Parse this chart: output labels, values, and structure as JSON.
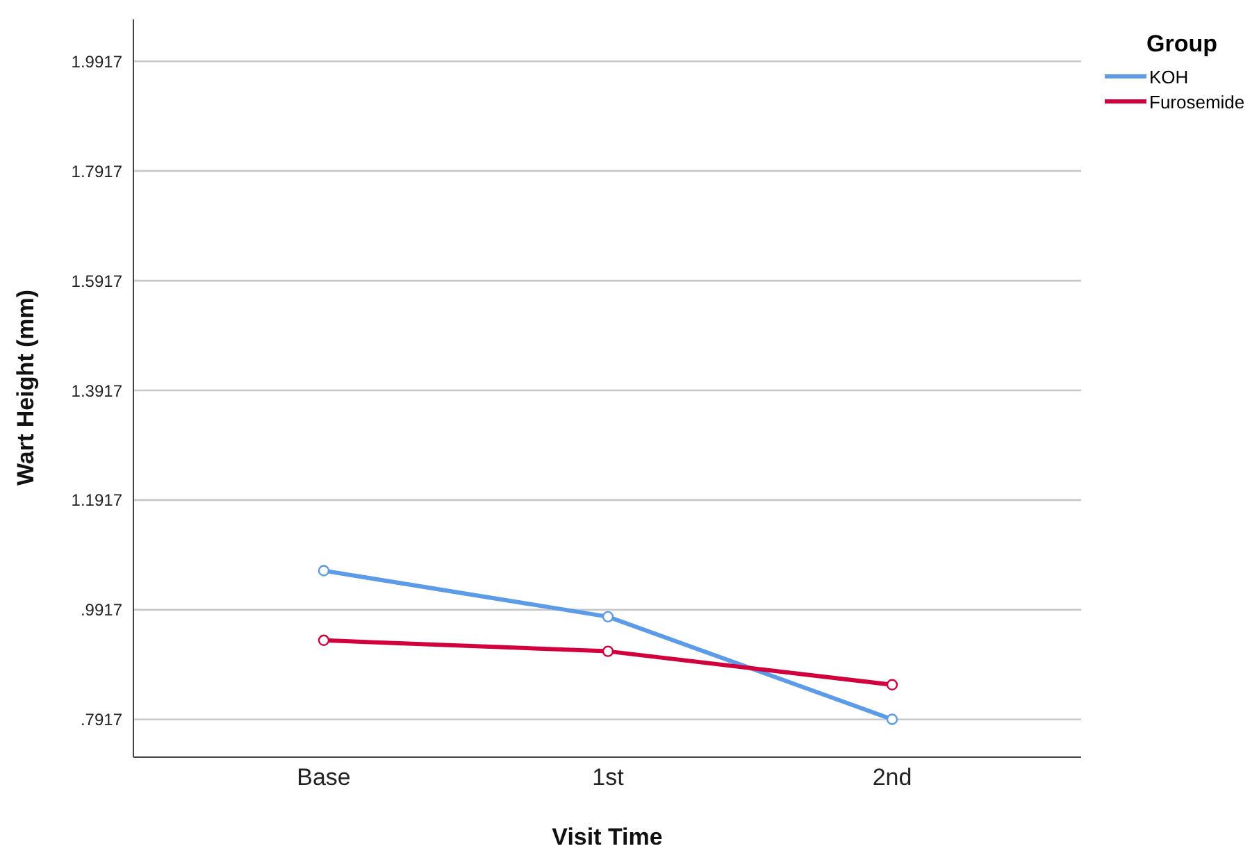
{
  "chart_data": {
    "type": "line",
    "xlabel": "Visit Time",
    "ylabel": "Wart Height (mm)",
    "legend_title": "Group",
    "categories": [
      "Base",
      "1st",
      "2nd"
    ],
    "series": [
      {
        "name": "KOH",
        "color": "#5b9be8",
        "values": [
          1.063,
          0.979,
          0.792
        ]
      },
      {
        "name": "Furosemide",
        "color": "#d2003c",
        "values": [
          0.936,
          0.916,
          0.855
        ]
      }
    ],
    "ylim": [
      0.723,
      2.068
    ],
    "yticks": [
      {
        "value": 0.7917,
        "label": ".7917"
      },
      {
        "value": 0.9917,
        "label": ".9917"
      },
      1.1917,
      1.3917,
      1.5917,
      1.7917,
      1.9917
    ],
    "grid": "y",
    "legend": "top right",
    "marker": "circle",
    "line_style": "solid"
  }
}
